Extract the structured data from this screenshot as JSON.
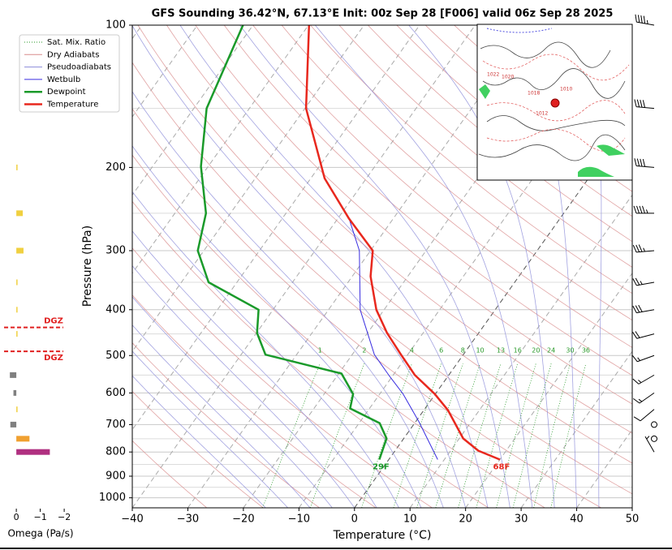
{
  "chart_data": {
    "type": "skewt",
    "title": "GFS Sounding 36.42°N, 67.13°E Init: 00z Sep 28 [F006] valid 06z Sep 28 2025",
    "xlabel": "Temperature (°C)",
    "ylabel": "Pressure (hPa)",
    "xlim": [
      -40,
      50
    ],
    "ylim": [
      1050,
      100
    ],
    "log_y": true,
    "grid": true,
    "xticks": [
      {
        "value": -40,
        "label": "−40"
      },
      {
        "value": -30,
        "label": "−30"
      },
      {
        "value": -20,
        "label": "−20"
      },
      {
        "value": -10,
        "label": "−10"
      },
      0,
      10,
      20,
      30,
      40,
      50
    ],
    "yticks": [
      100,
      200,
      300,
      400,
      500,
      600,
      700,
      800,
      900,
      1000
    ],
    "y_minor_ticks": [
      150,
      250,
      350,
      450,
      550,
      650,
      750,
      850,
      950
    ],
    "legend": "upper left",
    "reference_lines": [
      {
        "name": "Sat. Mix. Ratio",
        "color": "#2a9a2a",
        "style": "dotted"
      },
      {
        "name": "Dry Adiabats",
        "color": "#d98c8c",
        "style": "solid"
      },
      {
        "name": "Pseudoadiabats",
        "color": "#8c8cd9",
        "style": "solid"
      }
    ],
    "mixing_ratios": [
      1,
      2,
      4,
      6,
      8,
      10,
      13,
      16,
      20,
      24,
      30,
      36
    ],
    "series": [
      {
        "name": "Wetbulb",
        "color": "#3a2ee0",
        "width": 1,
        "pressure": [
          830,
          692,
          603,
          550,
          498,
          400,
          300,
          257
        ],
        "values": [
          8.8,
          0.7,
          -5.8,
          -10.8,
          -16.0,
          -24.3,
          -32.0,
          -37.9
        ]
      },
      {
        "name": "Dewpoint",
        "color": "#1a9a2a",
        "width": 2.5,
        "pressure": [
          830,
          749,
          695,
          647,
          603,
          546,
          498,
          448,
          400,
          350,
          300,
          250,
          199,
          150,
          100
        ],
        "values": [
          -1.7,
          -3.1,
          -6.3,
          -13.5,
          -14.8,
          -19.5,
          -35.6,
          -39.9,
          -42.6,
          -55.1,
          -61.1,
          -64.4,
          -71.3,
          -77.7,
          -81.8
        ],
        "value_labels": [
          "29F",
          null,
          null,
          null,
          null,
          null,
          null,
          null,
          null,
          null,
          null,
          null,
          null,
          null,
          null
        ]
      },
      {
        "name": "Temperature",
        "color": "#e8281e",
        "width": 2.5,
        "pressure": [
          830,
          795,
          749,
          652,
          603,
          550,
          498,
          448,
          400,
          340,
          300,
          257,
          211,
          150,
          100
        ],
        "values": [
          20.0,
          15.0,
          10.7,
          4.3,
          -0.1,
          -6.1,
          -11.2,
          -16.5,
          -21.4,
          -26.7,
          -29.6,
          -37.9,
          -47.5,
          -59.8,
          -69.9
        ],
        "value_labels": [
          "68F",
          null,
          null,
          null,
          null,
          null,
          null,
          null,
          null,
          null,
          null,
          null,
          null,
          null,
          null
        ]
      }
    ],
    "omega": {
      "xlabel": "Omega (Pa/s)",
      "xlim": [
        0.58,
        -2.2
      ],
      "xticks": [
        0,
        {
          "value": -1,
          "label": "−1"
        },
        {
          "value": -2,
          "label": "−2"
        }
      ],
      "pressure": [
        200,
        250,
        300,
        350,
        400,
        450,
        550,
        600,
        650,
        700,
        750,
        800
      ],
      "values": [
        -0.05,
        -0.27,
        -0.3,
        -0.05,
        -0.05,
        -0.05,
        0.27,
        0.12,
        -0.05,
        0.25,
        -0.55,
        -1.4
      ],
      "colors": [
        "#f0d040",
        "#f0d040",
        "#f0d040",
        "#f0d040",
        "#f0d040",
        "#f0d040",
        "#808080",
        "#808080",
        "#f0d040",
        "#808080",
        "#f0a030",
        "#b03080"
      ],
      "dgz_pressure": [
        436,
        490
      ],
      "dgz_labels": [
        "DGZ",
        "DGZ"
      ]
    },
    "wind": {
      "pressure": [
        100,
        150,
        200,
        250,
        300,
        350,
        400,
        450,
        500,
        550,
        600,
        650,
        700,
        750,
        800
      ],
      "speed": [
        45,
        40,
        40,
        45,
        35,
        25,
        30,
        20,
        15,
        15,
        15,
        10,
        0,
        0,
        5
      ],
      "direction": [
        280,
        275,
        275,
        270,
        265,
        260,
        260,
        255,
        250,
        240,
        235,
        230,
        0,
        0,
        330
      ]
    },
    "inset_map_labels": [
      "1022",
      "1020",
      "1018",
      "1012",
      "1010"
    ]
  }
}
